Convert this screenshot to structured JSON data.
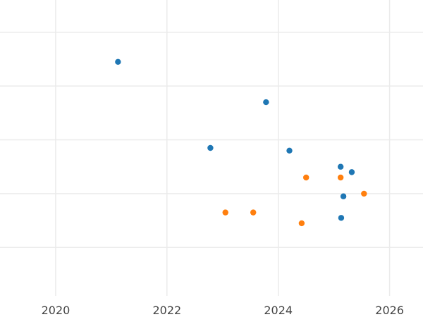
{
  "chart_data": {
    "type": "scatter",
    "title": "",
    "xlabel": "",
    "ylabel": "",
    "grid": true,
    "legend": "none",
    "xlim": [
      2019.0,
      2026.6
    ],
    "x_ticks": [
      2020,
      2022,
      2024,
      2026
    ],
    "x_tick_labels": [
      "2020",
      "2022",
      "2024",
      "2026"
    ],
    "ylim": [
      0,
      5.5
    ],
    "y_gridlines": [
      0.9,
      1.9,
      2.9,
      3.9,
      4.9
    ],
    "series": [
      {
        "color": "#1f77b4",
        "points": [
          {
            "x": 2021.12,
            "y": 4.35
          },
          {
            "x": 2023.78,
            "y": 3.6
          },
          {
            "x": 2022.78,
            "y": 2.75
          },
          {
            "x": 2024.2,
            "y": 2.7
          },
          {
            "x": 2025.12,
            "y": 2.4
          },
          {
            "x": 2025.32,
            "y": 2.3
          },
          {
            "x": 2025.17,
            "y": 1.85
          },
          {
            "x": 2025.13,
            "y": 1.45
          }
        ]
      },
      {
        "color": "#ff7f0e",
        "points": [
          {
            "x": 2024.5,
            "y": 2.2
          },
          {
            "x": 2025.12,
            "y": 2.2
          },
          {
            "x": 2025.54,
            "y": 1.9
          },
          {
            "x": 2023.05,
            "y": 1.55
          },
          {
            "x": 2023.55,
            "y": 1.55
          },
          {
            "x": 2024.42,
            "y": 1.35
          }
        ]
      }
    ]
  }
}
